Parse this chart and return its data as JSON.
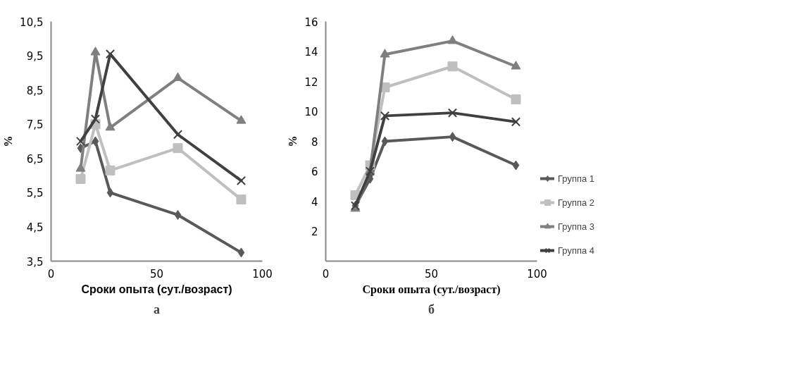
{
  "chart_data": [
    {
      "type": "line",
      "subtitle": "а",
      "xlabel": "Сроки опыта (сут./возраст)",
      "ylabel": "%",
      "x": [
        14,
        21,
        28,
        60,
        90
      ],
      "xlim": [
        0,
        100
      ],
      "xticks": [
        0,
        50,
        100
      ],
      "ylim": [
        3.5,
        10.5
      ],
      "yticks": [
        {
          "value": 3.5,
          "label": "3,5"
        },
        {
          "value": 4.5,
          "label": "4,5"
        },
        {
          "value": 5.5,
          "label": "5,5"
        },
        {
          "value": 6.5,
          "label": "6,5"
        },
        {
          "value": 7.5,
          "label": "7,5"
        },
        {
          "value": 8.5,
          "label": "8,5"
        },
        {
          "value": 9.5,
          "label": "9,5"
        },
        {
          "value": 10.5,
          "label": "10,5"
        }
      ],
      "grid": false,
      "legend": false,
      "series": [
        {
          "color": "#595959",
          "marker": "diamond",
          "values": [
            6.8,
            7.0,
            5.5,
            4.85,
            3.75
          ]
        },
        {
          "color": "#bfbfbf",
          "marker": "square",
          "values": [
            5.9,
            7.5,
            6.15,
            6.8,
            5.3
          ]
        },
        {
          "color": "#7f7f7f",
          "marker": "triangle",
          "values": [
            6.2,
            9.6,
            7.4,
            8.85,
            7.6
          ]
        },
        {
          "color": "#404040",
          "marker": "cross",
          "values": [
            7.0,
            7.65,
            9.55,
            7.2,
            5.85
          ]
        }
      ]
    },
    {
      "type": "line",
      "subtitle": "б",
      "xlabel": "Сроки опыта (сут./возраст)",
      "ylabel": "%",
      "x": [
        14,
        21,
        28,
        60,
        90
      ],
      "xlim": [
        0,
        100
      ],
      "xticks": [
        0,
        50,
        100
      ],
      "ylim": [
        0,
        16
      ],
      "yticks": [
        {
          "value": 0,
          "label": null
        },
        2,
        4,
        6,
        8,
        10,
        12,
        14,
        16
      ],
      "grid": false,
      "legend": "right",
      "series": [
        {
          "name": "Группа 1",
          "color": "#595959",
          "marker": "diamond",
          "values": [
            3.7,
            5.5,
            8.0,
            8.3,
            6.4
          ]
        },
        {
          "name": "Группа 2",
          "color": "#bfbfbf",
          "marker": "square",
          "values": [
            4.4,
            6.4,
            11.6,
            13.0,
            10.8
          ]
        },
        {
          "name": "Группа 3",
          "color": "#7f7f7f",
          "marker": "triangle",
          "values": [
            3.5,
            6.0,
            13.8,
            14.7,
            13.0
          ]
        },
        {
          "name": "Группа 4",
          "color": "#404040",
          "marker": "cross",
          "values": [
            3.7,
            6.0,
            9.7,
            9.9,
            9.3
          ]
        }
      ]
    }
  ]
}
